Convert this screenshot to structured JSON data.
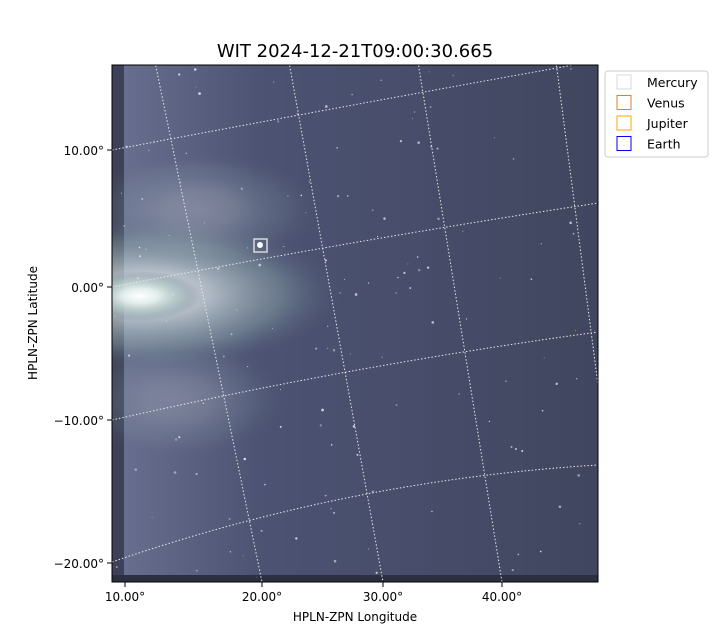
{
  "chart_data": {
    "type": "heatmap",
    "title": "WIT 2024-12-21T09:00:30.665",
    "xlabel": "HPLN-ZPN Longitude",
    "ylabel": "HPLN-ZPN Latitude",
    "x_ticks": [
      "10.00°",
      "20.00°",
      "30.00°",
      "40.00°"
    ],
    "y_ticks": [
      "10.00°",
      "0.00°",
      "−10.00°",
      "−20.00°"
    ],
    "grid": true,
    "colormap": "bone",
    "legend": {
      "placement": "outside-top-right",
      "entries": [
        {
          "name": "Mercury",
          "color": "#d9d9d9"
        },
        {
          "name": "Venus",
          "color": "#d2823c"
        },
        {
          "name": "Jupiter",
          "color": "#ffa500"
        },
        {
          "name": "Earth",
          "color": "#0000ff"
        }
      ]
    },
    "markers": [
      {
        "name": "Mercury",
        "lon": 20,
        "lat": 3
      }
    ]
  }
}
